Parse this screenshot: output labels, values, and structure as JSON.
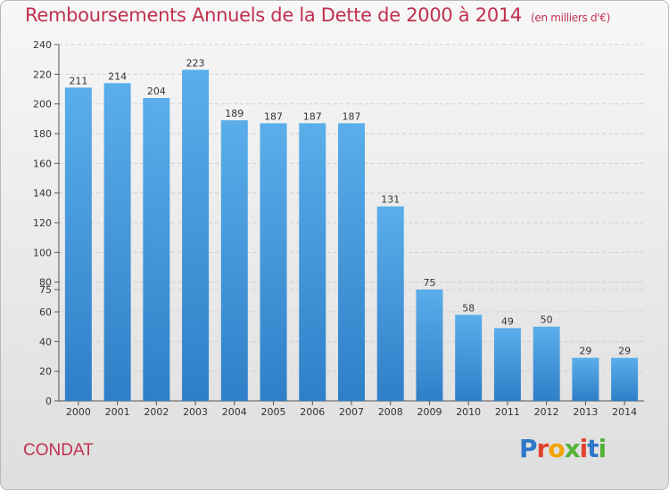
{
  "header": {
    "title": "Remboursements Annuels de la Dette de 2000 à 2014",
    "unit": "(en milliers d'€)"
  },
  "footer": {
    "town": "CONDAT",
    "logo": "Proxiti"
  },
  "colors": {
    "bar": "#4f9fe0",
    "title": "#c0304f"
  },
  "chart_data": {
    "type": "bar",
    "title": "Remboursements Annuels de la Dette de 2000 à 2014",
    "ylabel": "en milliers d'€",
    "categories": [
      "2000",
      "2001",
      "2002",
      "2003",
      "2004",
      "2005",
      "2006",
      "2007",
      "2008",
      "2009",
      "2010",
      "2011",
      "2012",
      "2013",
      "2014"
    ],
    "values": [
      211,
      214,
      204,
      223,
      189,
      187,
      187,
      187,
      131,
      75,
      58,
      49,
      50,
      29,
      29
    ],
    "yticks": [
      0,
      20,
      40,
      60,
      75,
      80,
      100,
      120,
      140,
      160,
      180,
      200,
      220,
      240
    ]
  }
}
